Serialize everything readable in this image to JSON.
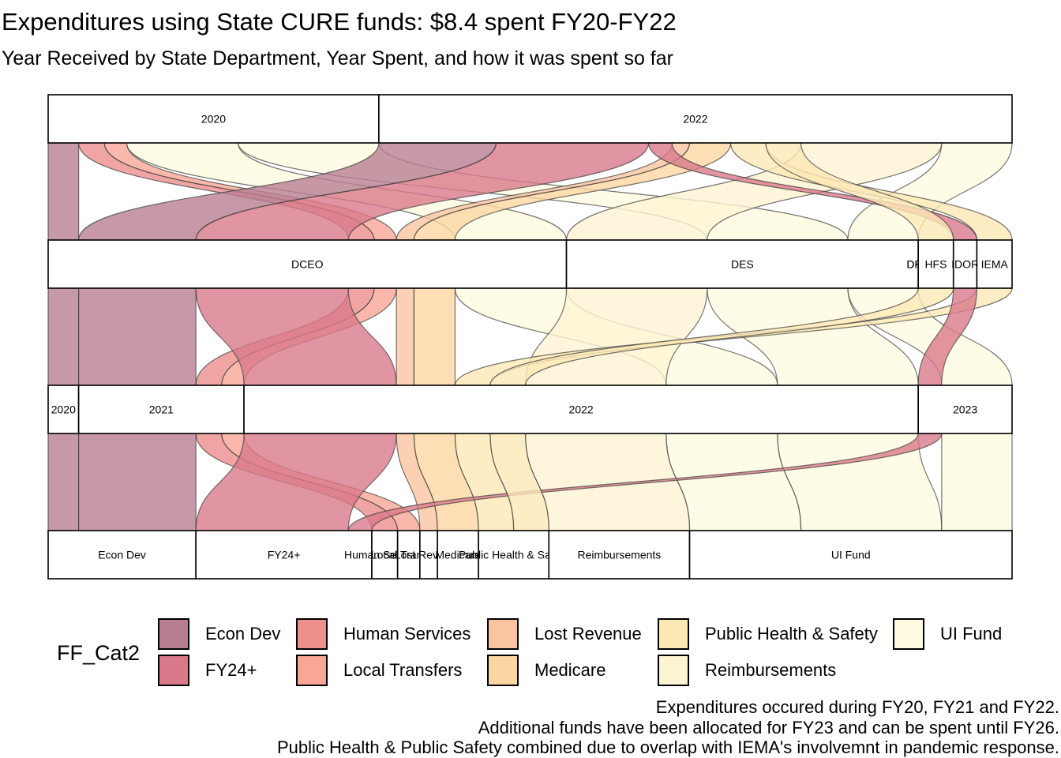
{
  "chart_data": {
    "type": "alluvial",
    "title": "Expenditures using State CURE funds: $8.4 spent FY20-FY22",
    "subtitle": "Year Received by State Department, Year Spent, and how it was spent so far",
    "axes": [
      {
        "nodes": [
          "2020",
          "2022"
        ]
      },
      {
        "nodes": [
          "DCEO",
          "DES",
          "DHS",
          "DPH",
          "HFS",
          "IDOR",
          "IEMA"
        ]
      },
      {
        "nodes": [
          "2020",
          "2021",
          "2022",
          "2023"
        ]
      },
      {
        "nodes": [
          "Econ Dev",
          "FY24+",
          "Human Services",
          "Local Transfers",
          "Lost Revenue",
          "Medicare",
          "Public Health & Safety",
          "Reimbursements",
          "UI Fund"
        ]
      }
    ],
    "flows": [
      {
        "cat": "Econ Dev",
        "path": [
          "2020",
          "DCEO",
          "2020",
          "Econ Dev"
        ],
        "value": 0.26
      },
      {
        "cat": "Human Services",
        "path": [
          "2020",
          "DCEO",
          "2021",
          "Human Services"
        ],
        "value": 0.22
      },
      {
        "cat": "Local Transfers",
        "path": [
          "2020",
          "DCEO",
          "2021",
          "Local Transfers"
        ],
        "value": 0.19
      },
      {
        "cat": "UI Fund",
        "path": [
          "2020",
          "DCEO",
          "2022",
          "UI Fund"
        ],
        "value": 0.95
      },
      {
        "cat": "UI Fund",
        "path": [
          "2020",
          "DES",
          "2022",
          "UI Fund"
        ],
        "value": 1.2
      },
      {
        "cat": "Econ Dev",
        "path": [
          "2022",
          "DCEO",
          "2021",
          "Econ Dev"
        ],
        "value": 1.0
      },
      {
        "cat": "FY24+",
        "path": [
          "2022",
          "DCEO",
          "2022",
          "FY24+"
        ],
        "value": 1.3
      },
      {
        "cat": "Lost Revenue",
        "path": [
          "2022",
          "DCEO",
          "2022",
          "Lost Revenue"
        ],
        "value": 0.15
      },
      {
        "cat": "Medicare",
        "path": [
          "2022",
          "DCEO",
          "2022",
          "Medicare"
        ],
        "value": 0.35
      },
      {
        "cat": "Reimbursements",
        "path": [
          "2022",
          "DES",
          "2022",
          "Reimbursements"
        ],
        "value": 1.2
      },
      {
        "cat": "UI Fund",
        "path": [
          "2022",
          "DES",
          "2023",
          "UI Fund"
        ],
        "value": 0.6
      },
      {
        "cat": "Public Health & Safety",
        "path": [
          "2022",
          "IEMA",
          "2022",
          "Public Health & Safety"
        ],
        "value": 0.3
      },
      {
        "cat": "FY24+",
        "path": [
          "2022",
          "IDOR",
          "2023",
          "FY24+"
        ],
        "value": 0.2
      },
      {
        "cat": "Public Health & Safety",
        "path": [
          "2022",
          "HFS",
          "2022",
          "Public Health & Safety"
        ],
        "value": 0.3
      }
    ],
    "legend": {
      "title": "FF_Cat2",
      "position": "bottom",
      "items": [
        {
          "label": "Econ Dev",
          "color": "#b87e92"
        },
        {
          "label": "FY24+",
          "color": "#d9798a"
        },
        {
          "label": "Human Services",
          "color": "#ec8f8d"
        },
        {
          "label": "Local Transfers",
          "color": "#f8a696"
        },
        {
          "label": "Lost Revenue",
          "color": "#fbc4a0"
        },
        {
          "label": "Medicare",
          "color": "#fcd6a2"
        },
        {
          "label": "Public Health & Safety",
          "color": "#fde9b6"
        },
        {
          "label": "Reimbursements",
          "color": "#fdf4d3"
        },
        {
          "label": "UI Fund",
          "color": "#fefbe0"
        }
      ]
    },
    "caption": [
      "Expenditures occured during FY20, FY21 and FY22.",
      "Additional funds have been allocated for FY23 and can be spent until FY26.",
      "Public Health & Public Safety combined due to overlap with IEMA's involvemnt in pandemic response."
    ]
  }
}
